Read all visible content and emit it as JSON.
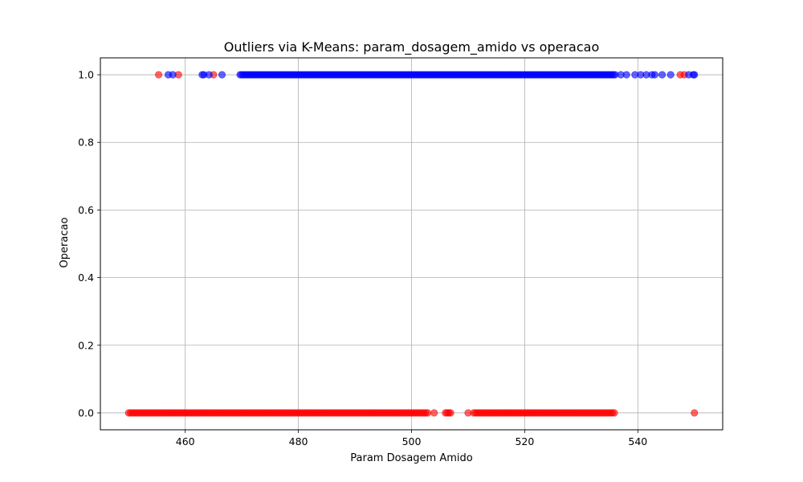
{
  "chart_data": {
    "type": "scatter",
    "title": "Outliers via K-Means: param_dosagem_amido vs operacao",
    "xlabel": "Param Dosagem Amido",
    "ylabel": "Operacao",
    "xlim": [
      445,
      555
    ],
    "ylim": [
      -0.05,
      1.05
    ],
    "xticks": [
      460,
      480,
      500,
      520,
      540
    ],
    "yticks": [
      0.0,
      0.2,
      0.4,
      0.6,
      0.8,
      1.0
    ],
    "xtick_labels": [
      "460",
      "480",
      "500",
      "520",
      "540"
    ],
    "ytick_labels": [
      "0.0",
      "0.2",
      "0.4",
      "0.6",
      "0.8",
      "1.0"
    ],
    "grid": true,
    "point_alpha": 0.6,
    "series": [
      {
        "color": "#ff0000",
        "clusters": [
          {
            "y": 0,
            "x_min": 450,
            "x_max": 503,
            "step": 0.35
          },
          {
            "y": 0,
            "x_min": 506,
            "x_max": 507,
            "step": 0.3
          },
          {
            "y": 0,
            "x_min": 511,
            "x_max": 536,
            "step": 0.35
          }
        ],
        "points": [
          {
            "x": 504,
            "y": 0
          },
          {
            "x": 510,
            "y": 0
          },
          {
            "x": 550,
            "y": 0
          },
          {
            "x": 455.3,
            "y": 1
          },
          {
            "x": 458.8,
            "y": 1
          },
          {
            "x": 465,
            "y": 1
          },
          {
            "x": 547.5,
            "y": 1
          },
          {
            "x": 548.2,
            "y": 1
          }
        ]
      },
      {
        "color": "#0000ff",
        "clusters": [
          {
            "y": 1,
            "x_min": 469.7,
            "x_max": 536,
            "step": 0.3
          }
        ],
        "points": [
          {
            "x": 457,
            "y": 1
          },
          {
            "x": 457.8,
            "y": 1
          },
          {
            "x": 463,
            "y": 1
          },
          {
            "x": 463.3,
            "y": 1
          },
          {
            "x": 464.2,
            "y": 1
          },
          {
            "x": 466.5,
            "y": 1
          },
          {
            "x": 537,
            "y": 1
          },
          {
            "x": 538,
            "y": 1
          },
          {
            "x": 539.5,
            "y": 1
          },
          {
            "x": 540.5,
            "y": 1
          },
          {
            "x": 541.5,
            "y": 1
          },
          {
            "x": 542.5,
            "y": 1
          },
          {
            "x": 543,
            "y": 1
          },
          {
            "x": 544.3,
            "y": 1
          },
          {
            "x": 545.8,
            "y": 1
          },
          {
            "x": 549,
            "y": 1
          },
          {
            "x": 549.8,
            "y": 1
          },
          {
            "x": 550,
            "y": 1
          }
        ]
      }
    ]
  }
}
